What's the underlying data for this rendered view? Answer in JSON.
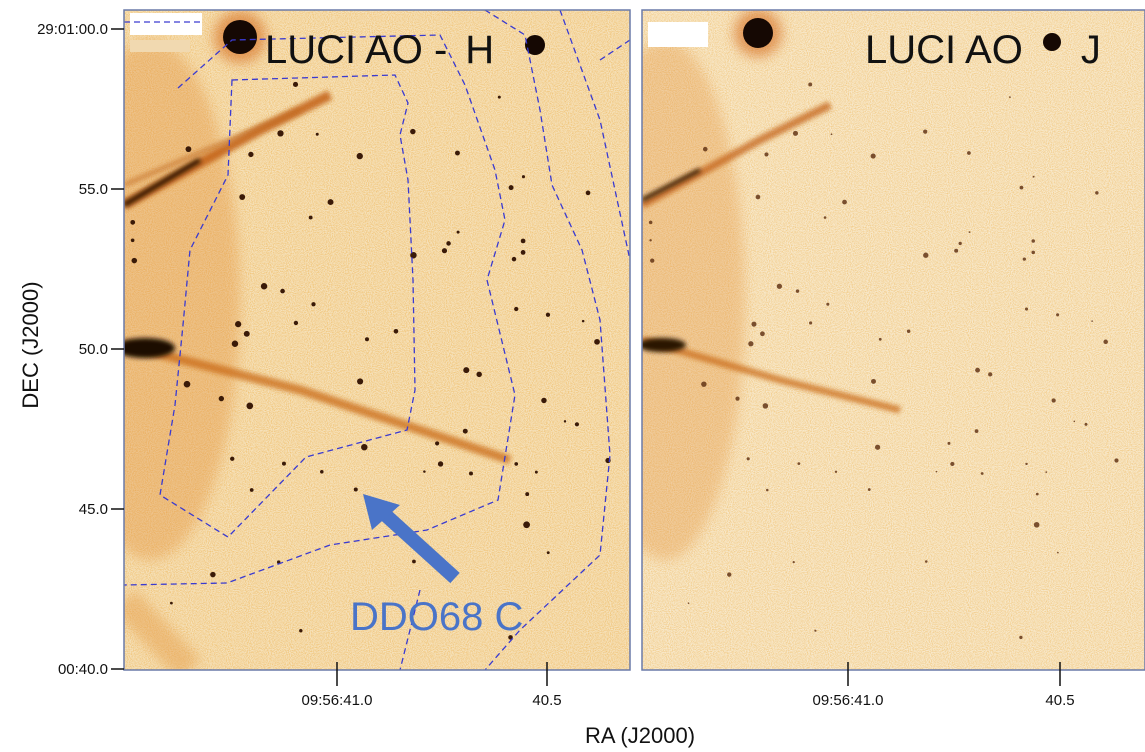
{
  "figure": {
    "x_axis_title": "RA (J2000)",
    "y_axis_title": "DEC (J2000)"
  },
  "panels": [
    {
      "title_prefix": "LUCI AO -",
      "title_band": "H",
      "has_contours": true,
      "callout": {
        "label": "DDO68 C",
        "color": "#4a74c8"
      }
    },
    {
      "title_prefix": "LUCI AO",
      "title_band": "J",
      "has_contours": false
    }
  ],
  "y_ticks": [
    {
      "label": "29:01:00.0",
      "value": 60
    },
    {
      "label": "55.0",
      "value": 55
    },
    {
      "label": "50.0",
      "value": 50
    },
    {
      "label": "45.0",
      "value": 45
    },
    {
      "label": "00:40.0",
      "value": 40
    }
  ],
  "x_ticks": [
    {
      "label": "09:56:41.0",
      "value": 41.0
    },
    {
      "label": "40.5",
      "value": 40.5
    }
  ],
  "colors": {
    "background_sky": "#f6e2bc",
    "emission": "#d9771a",
    "core": "#1a0c04",
    "contour": "#3a3ad0",
    "frame": "#6a7aa8"
  }
}
